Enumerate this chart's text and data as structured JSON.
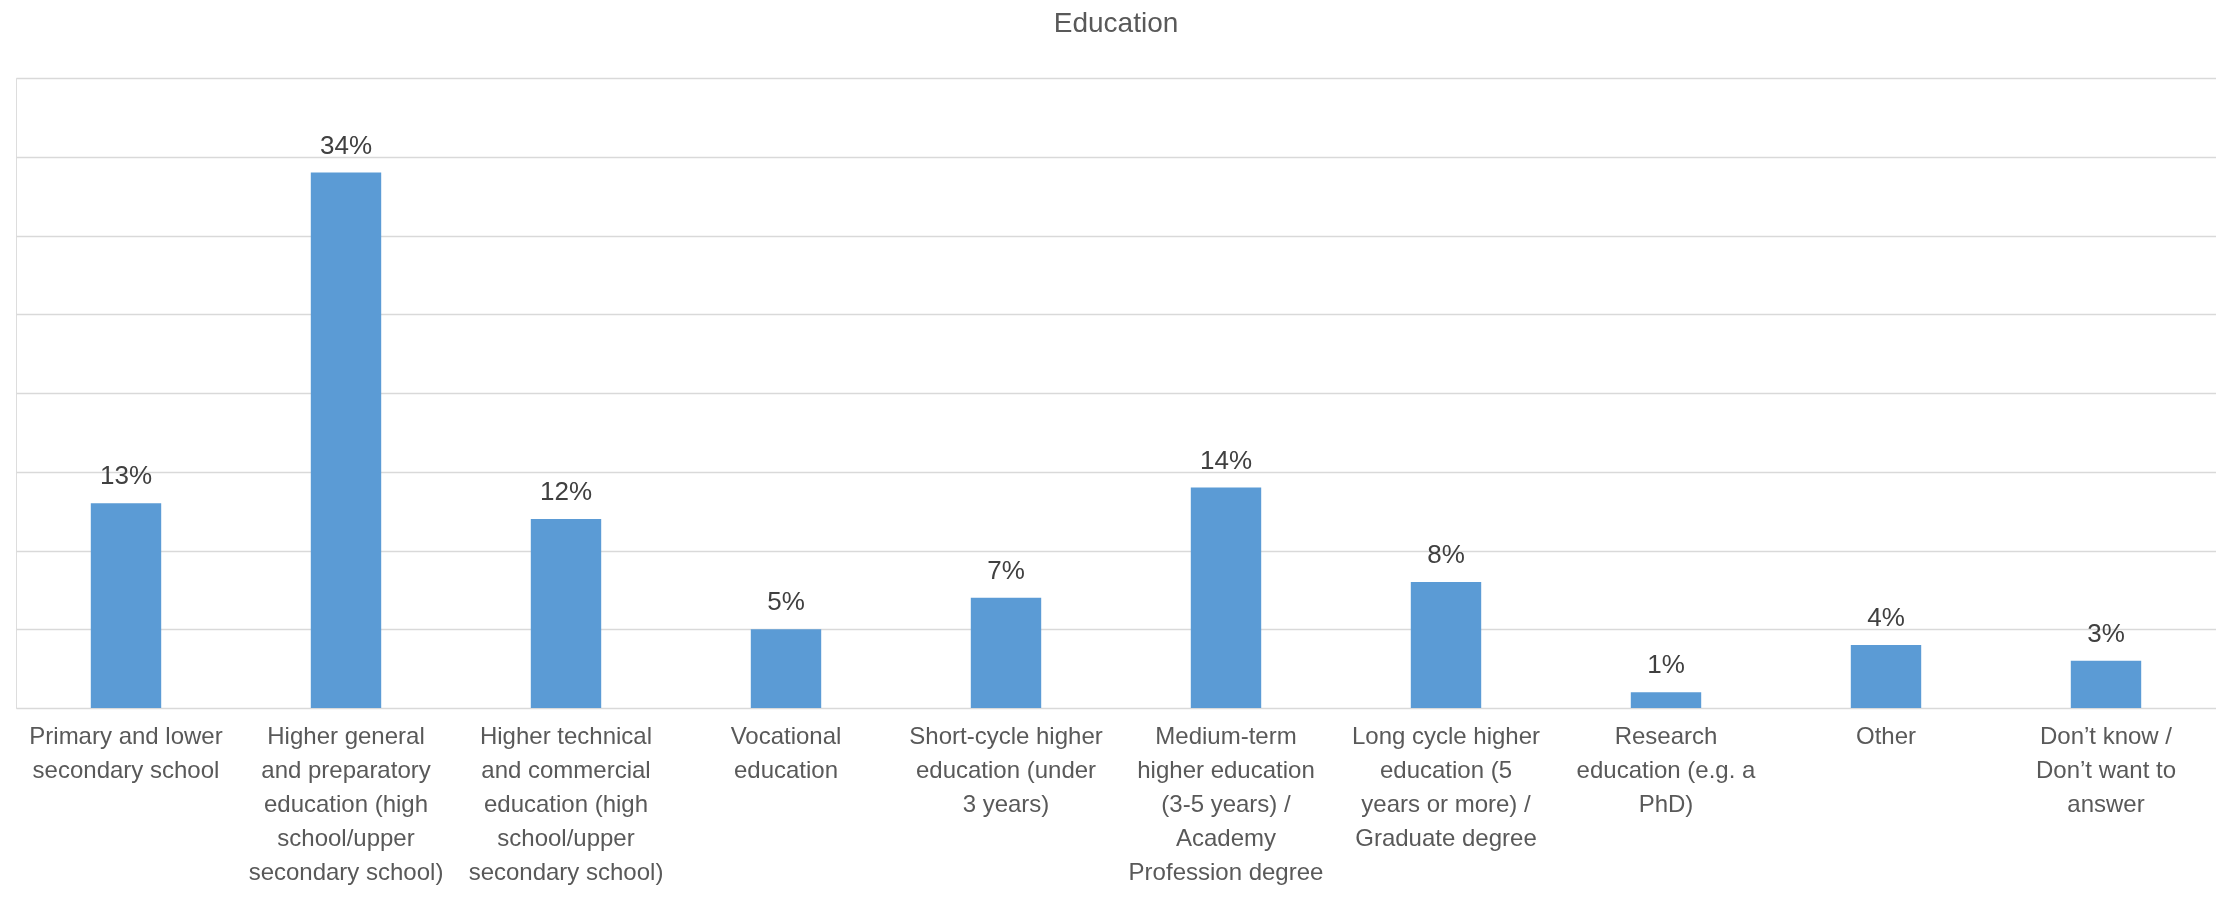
{
  "chart_data": {
    "type": "bar",
    "title": "Education",
    "categories": [
      "Primary and lower secondary school",
      "Higher general and preparatory education (high school/upper secondary school)",
      "Higher technical and commercial education (high school/upper secondary school)",
      "Vocational education",
      "Short-cycle higher education (under 3 years)",
      "Medium-term higher education (3-5 years) / Academy Profession degree",
      "Long cycle higher education (5 years or more) / Graduate degree",
      "Research education (e.g. a PhD)",
      "Other",
      "Don’t know / Don’t want to answer"
    ],
    "values": [
      13,
      34,
      12,
      5,
      7,
      14,
      8,
      1,
      4,
      3
    ],
    "value_labels": [
      "13%",
      "34%",
      "12%",
      "5%",
      "7%",
      "14%",
      "8%",
      "1%",
      "4%",
      "3%"
    ],
    "color": "#5b9bd5",
    "ylim": [
      0,
      40
    ],
    "yticks": [
      {
        "value": 0,
        "label": null
      },
      {
        "value": 5,
        "label": null
      },
      {
        "value": 10,
        "label": null
      },
      {
        "value": 15,
        "label": null
      },
      {
        "value": 20,
        "label": null
      },
      {
        "value": 25,
        "label": null
      },
      {
        "value": 30,
        "label": null
      },
      {
        "value": 35,
        "label": null
      },
      {
        "value": 40,
        "label": null
      }
    ],
    "grid": "y",
    "tick_labels": "x"
  }
}
